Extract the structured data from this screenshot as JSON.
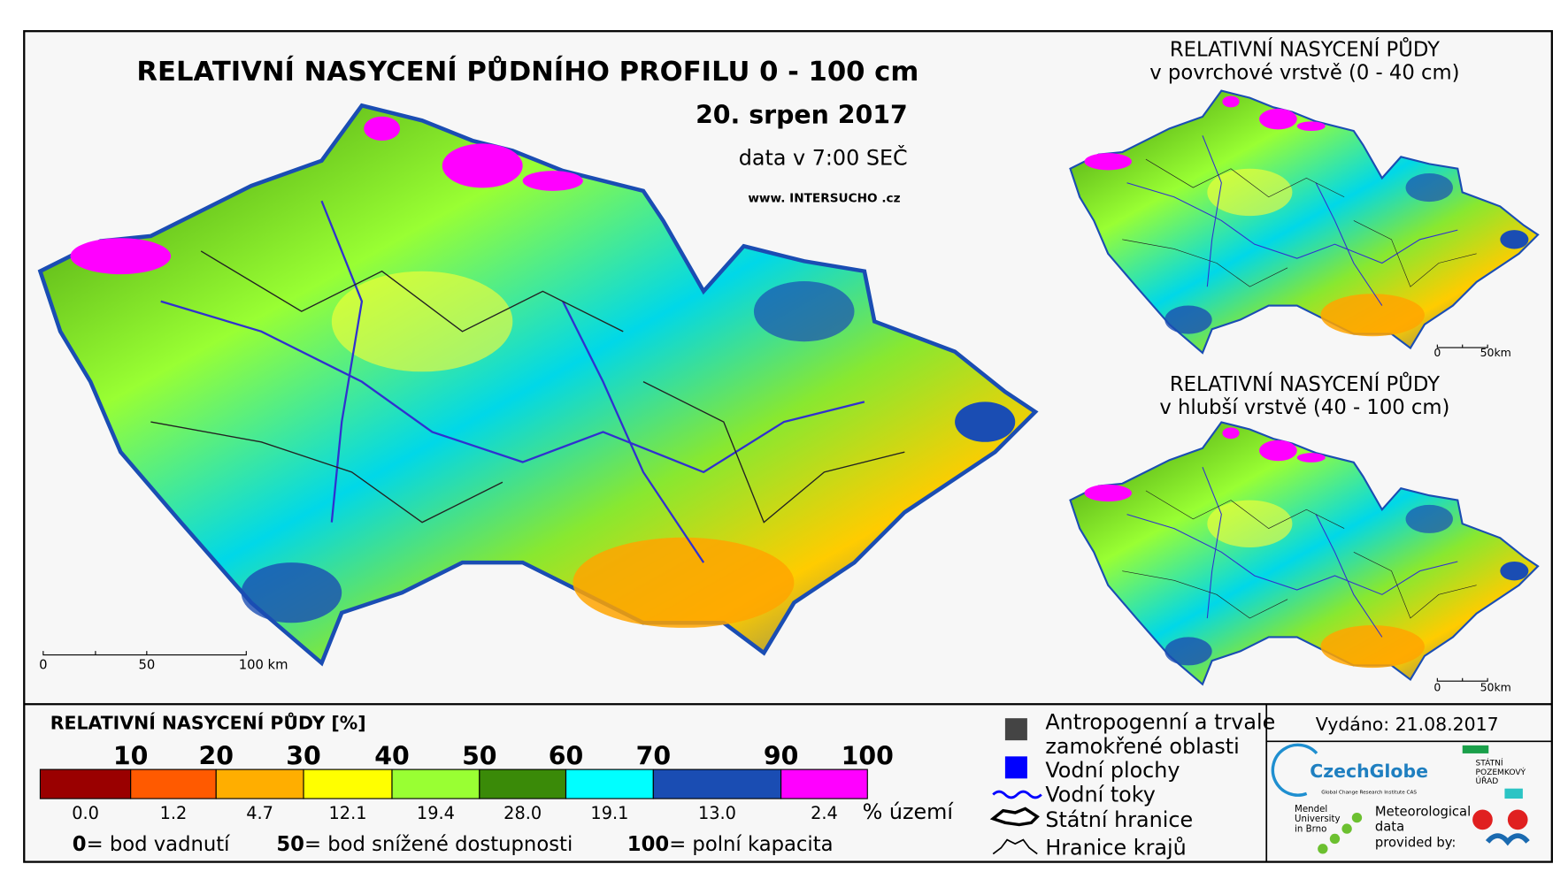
{
  "title": "RELATIVNÍ NASYCENÍ PŮDNÍHO PROFILU 0 - 100 cm",
  "date": "20. srpen 2017",
  "time": "data v 7:00 SEČ",
  "website": "www. INTERSUCHO .cz",
  "main_map": {
    "scale_labels": [
      "0",
      "50",
      "100 km"
    ]
  },
  "insets": [
    {
      "title_lines": [
        "RELATIVNÍ NASYCENÍ PŮDY",
        "v povrchové vrstvě (0 - 40 cm)"
      ],
      "scale_labels": [
        "0",
        "50km"
      ]
    },
    {
      "title_lines": [
        "RELATIVNÍ NASYCENÍ PŮDY",
        "v hlubší vrstvě (40 - 100 cm)"
      ],
      "scale_labels": [
        "0",
        "50km"
      ]
    }
  ],
  "legend": {
    "title": "RELATIVNÍ NASYCENÍ PŮDY [%]",
    "ticks": [
      10,
      20,
      30,
      40,
      50,
      60,
      70,
      90,
      100
    ],
    "bins": [
      {
        "color": "#9a0000",
        "share": "0.0"
      },
      {
        "color": "#ff5a00",
        "share": "1.2"
      },
      {
        "color": "#ffae00",
        "share": "4.7"
      },
      {
        "color": "#ffff00",
        "share": "12.1"
      },
      {
        "color": "#99ff33",
        "share": "19.4"
      },
      {
        "color": "#3a8a08",
        "share": "28.0"
      },
      {
        "color": "#00ffff",
        "share": "19.1"
      },
      {
        "color": "#1a4db3",
        "share": "13.0"
      },
      {
        "color": "#ff00ff",
        "share": "2.4"
      }
    ],
    "share_unit": "% území",
    "definitions": [
      {
        "value": "0",
        "text": "= bod vadnutí"
      },
      {
        "value": "50",
        "text": "= bod snížené dostupnosti"
      },
      {
        "value": "100",
        "text": "= polní kapacita"
      }
    ]
  },
  "symbols": [
    {
      "label_lines": [
        "Antropogenní a trvale",
        "zamokřené oblasti"
      ]
    },
    {
      "label_lines": [
        "Vodní plochy"
      ]
    },
    {
      "label_lines": [
        "Vodní toky"
      ]
    },
    {
      "label_lines": [
        "Státní hranice"
      ]
    },
    {
      "label_lines": [
        "Hranice krajů"
      ]
    }
  ],
  "issued": "Vydáno: 21.08.2017",
  "logos": {
    "czechglobe": "CzechGlobe",
    "czechglobe_sub": "Global Change Research Institute CAS",
    "spu": [
      "STÁTNÍ",
      "POZEMKOVÝ",
      "ÚŘAD"
    ],
    "mendel": [
      "Mendel",
      "University",
      "in Brno"
    ],
    "meteo": [
      "Meteorological",
      "data",
      "provided by:"
    ]
  }
}
